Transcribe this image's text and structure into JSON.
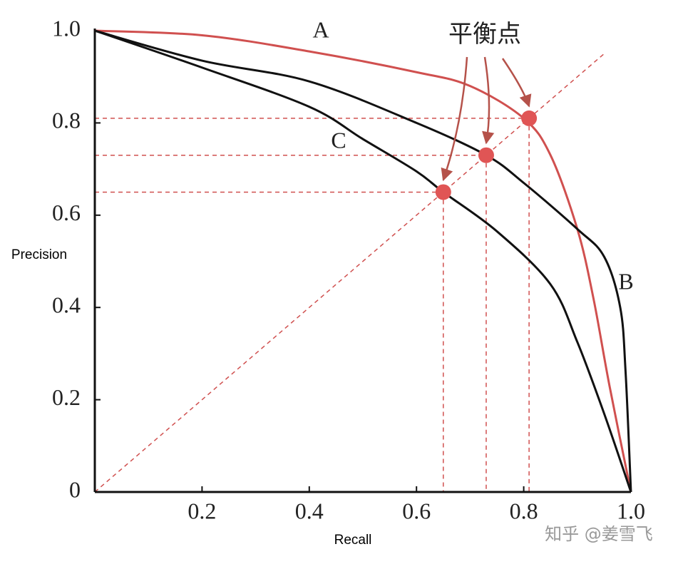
{
  "chart_data": {
    "type": "line",
    "x_label": "Recall",
    "y_label": "Precision",
    "xlim": [
      0,
      1
    ],
    "ylim": [
      0,
      1
    ],
    "xticks": [
      0.2,
      0.4,
      0.6,
      0.8,
      {
        "value": 1,
        "label": "1.0"
      }
    ],
    "yticks": [
      0,
      0.2,
      0.4,
      0.6,
      0.8,
      {
        "value": 1,
        "label": "1.0"
      }
    ],
    "series": [
      {
        "name": "A",
        "color": "#d0504f",
        "x": [
          0,
          0.2,
          0.4,
          0.6,
          0.7,
          0.8,
          0.85,
          0.9,
          0.93,
          0.96,
          1
        ],
        "values": [
          1,
          0.99,
          0.955,
          0.91,
          0.88,
          0.81,
          0.73,
          0.57,
          0.42,
          0.23,
          0
        ]
      },
      {
        "name": "B",
        "color": "#111111",
        "x": [
          0,
          0.2,
          0.4,
          0.6,
          0.73,
          0.8,
          0.9,
          0.95,
          0.98,
          0.99,
          1
        ],
        "values": [
          1,
          0.935,
          0.89,
          0.8,
          0.73,
          0.67,
          0.57,
          0.51,
          0.4,
          0.26,
          0
        ]
      },
      {
        "name": "C",
        "color": "#111111",
        "x": [
          0,
          0.2,
          0.4,
          0.5,
          0.6,
          0.65,
          0.75,
          0.85,
          0.9,
          0.95,
          1
        ],
        "values": [
          1,
          0.92,
          0.835,
          0.765,
          0.695,
          0.65,
          0.565,
          0.45,
          0.325,
          0.17,
          0
        ]
      }
    ],
    "break_even": {
      "label": "平衡点",
      "color": "#e05555",
      "x": [
        0.65,
        0.73,
        0.81
      ],
      "values": [
        0.65,
        0.73,
        0.81
      ]
    },
    "watermark": "知乎 @姜雪飞"
  }
}
